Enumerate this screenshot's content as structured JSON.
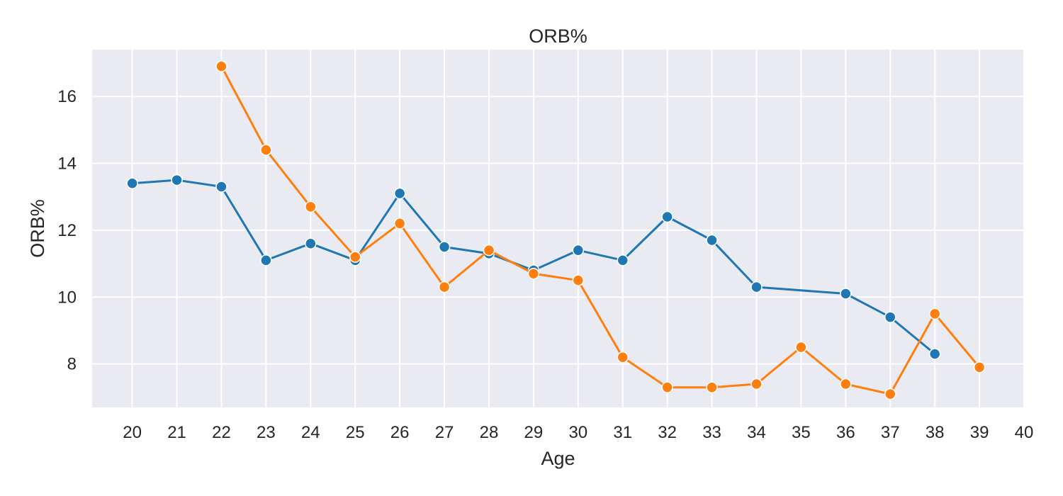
{
  "chart_data": {
    "type": "line",
    "title": "ORB%",
    "xlabel": "Age",
    "ylabel": "ORB%",
    "xlim": [
      19.1,
      40
    ],
    "ylim": [
      6.7,
      17.4
    ],
    "xticks": [
      20,
      21,
      22,
      23,
      24,
      25,
      26,
      27,
      28,
      29,
      30,
      31,
      32,
      33,
      34,
      35,
      36,
      37,
      38,
      39,
      40
    ],
    "yticks": [
      8,
      10,
      12,
      14,
      16
    ],
    "grid": true,
    "background_color": "#eaeaf2",
    "series": [
      {
        "color": "#1f77b4",
        "marker": "circle",
        "points": [
          [
            20,
            13.4
          ],
          [
            21,
            13.5
          ],
          [
            22,
            13.3
          ],
          [
            23,
            11.1
          ],
          [
            24,
            11.6
          ],
          [
            25,
            11.1
          ],
          [
            26,
            13.1
          ],
          [
            27,
            11.5
          ],
          [
            28,
            11.3
          ],
          [
            29,
            10.8
          ],
          [
            30,
            11.4
          ],
          [
            31,
            11.1
          ],
          [
            32,
            12.4
          ],
          [
            33,
            11.7
          ],
          [
            34,
            10.3
          ],
          [
            36,
            10.1
          ],
          [
            37,
            9.4
          ],
          [
            38,
            8.3
          ]
        ]
      },
      {
        "color": "#ff7f0e",
        "marker": "circle",
        "points": [
          [
            22,
            16.9
          ],
          [
            23,
            14.4
          ],
          [
            24,
            12.7
          ],
          [
            25,
            11.2
          ],
          [
            26,
            12.2
          ],
          [
            27,
            10.3
          ],
          [
            28,
            11.4
          ],
          [
            29,
            10.7
          ],
          [
            30,
            10.5
          ],
          [
            31,
            8.2
          ],
          [
            32,
            7.3
          ],
          [
            33,
            7.3
          ],
          [
            34,
            7.4
          ],
          [
            35,
            8.5
          ],
          [
            36,
            7.4
          ],
          [
            37,
            7.1
          ],
          [
            38,
            9.5
          ],
          [
            39,
            7.9
          ]
        ]
      }
    ]
  }
}
